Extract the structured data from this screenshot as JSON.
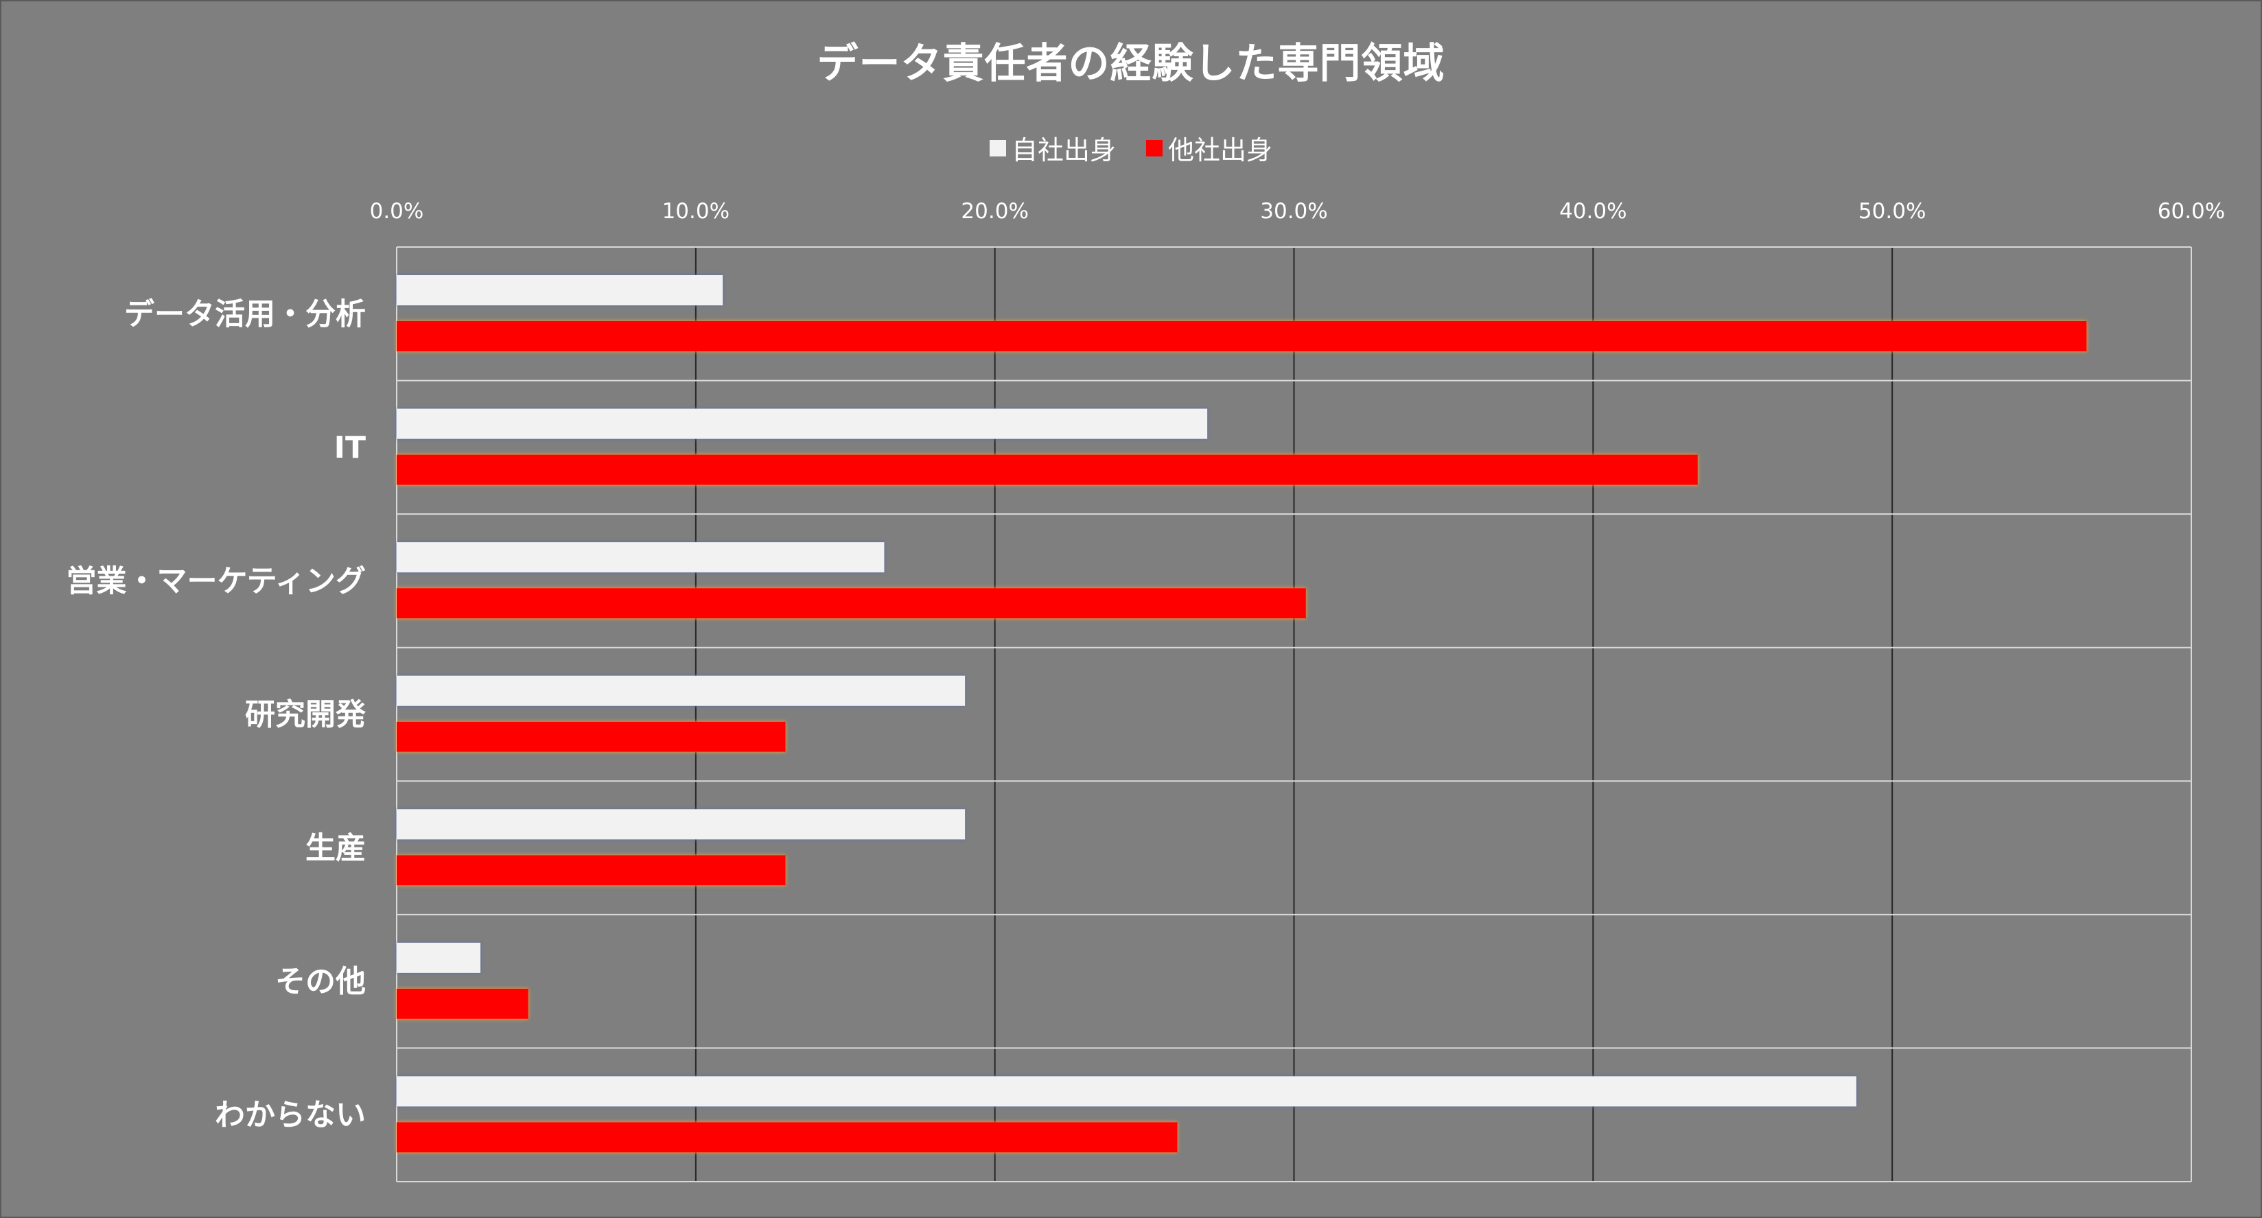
{
  "chart_data": {
    "type": "bar",
    "orientation": "horizontal",
    "title": "データ責任者の経験した専門領域",
    "categories": [
      "データ活用・分析",
      "IT",
      "営業・マーケティング",
      "研究開発",
      "生産",
      "その他",
      "わからない"
    ],
    "series": [
      {
        "name": "自社出身",
        "color": "#f2f2f2",
        "values": [
          10.9,
          27.1,
          16.3,
          19.0,
          19.0,
          2.8,
          48.8
        ]
      },
      {
        "name": "他社出身",
        "color": "#ff0000",
        "values": [
          56.5,
          43.5,
          30.4,
          13.0,
          13.0,
          4.4,
          26.1
        ]
      }
    ],
    "xlim": [
      0,
      60
    ],
    "xticks": [
      "0.0%",
      "10.0%",
      "20.0%",
      "30.0%",
      "40.0%",
      "50.0%",
      "60.0%"
    ],
    "xtick_values": [
      0,
      10,
      20,
      30,
      40,
      50,
      60
    ],
    "value_format": "percent",
    "legend_position": "top",
    "xaxis_position": "top",
    "grid": true
  },
  "colors": {
    "background": "#7f7f7f",
    "gridline": "#262626",
    "category_separator": "#d9d9d9",
    "text": "#ffffff"
  }
}
